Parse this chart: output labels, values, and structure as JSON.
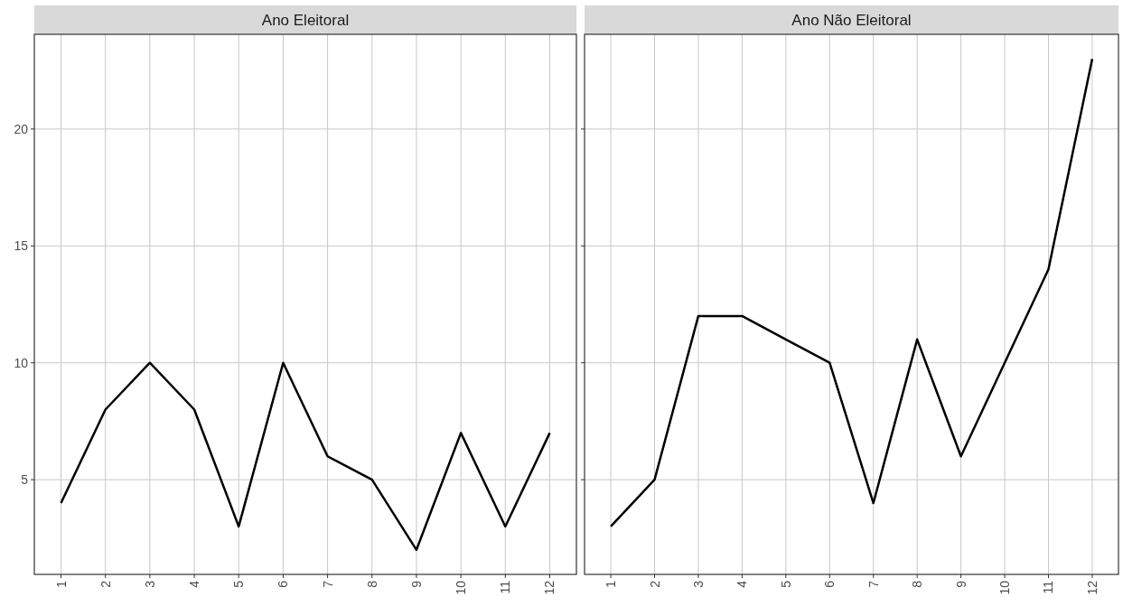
{
  "chart_data": [
    {
      "type": "line",
      "title": "Ano Eleitoral",
      "categories": [
        "1",
        "2",
        "3",
        "4",
        "5",
        "6",
        "7",
        "8",
        "9",
        "10",
        "11",
        "12"
      ],
      "series": [
        {
          "color": "#000000",
          "values": [
            4,
            8,
            10,
            8,
            3,
            10,
            6,
            5,
            2,
            7,
            3,
            7
          ]
        }
      ],
      "ylim": [
        0.95,
        24.05
      ],
      "yticks": [
        5,
        10,
        15,
        20
      ],
      "grid": true
    },
    {
      "type": "line",
      "title": "Ano Não Eleitoral",
      "categories": [
        "1",
        "2",
        "3",
        "4",
        "5",
        "6",
        "7",
        "8",
        "9",
        "10",
        "11",
        "12"
      ],
      "series": [
        {
          "color": "#000000",
          "values": [
            3,
            5,
            12,
            12,
            11,
            10,
            4,
            11,
            6,
            10,
            14,
            23
          ]
        }
      ],
      "ylim": [
        0.95,
        24.05
      ],
      "yticks": [
        5,
        10,
        15,
        20
      ],
      "grid": true,
      "tick_labels": "x"
    }
  ]
}
